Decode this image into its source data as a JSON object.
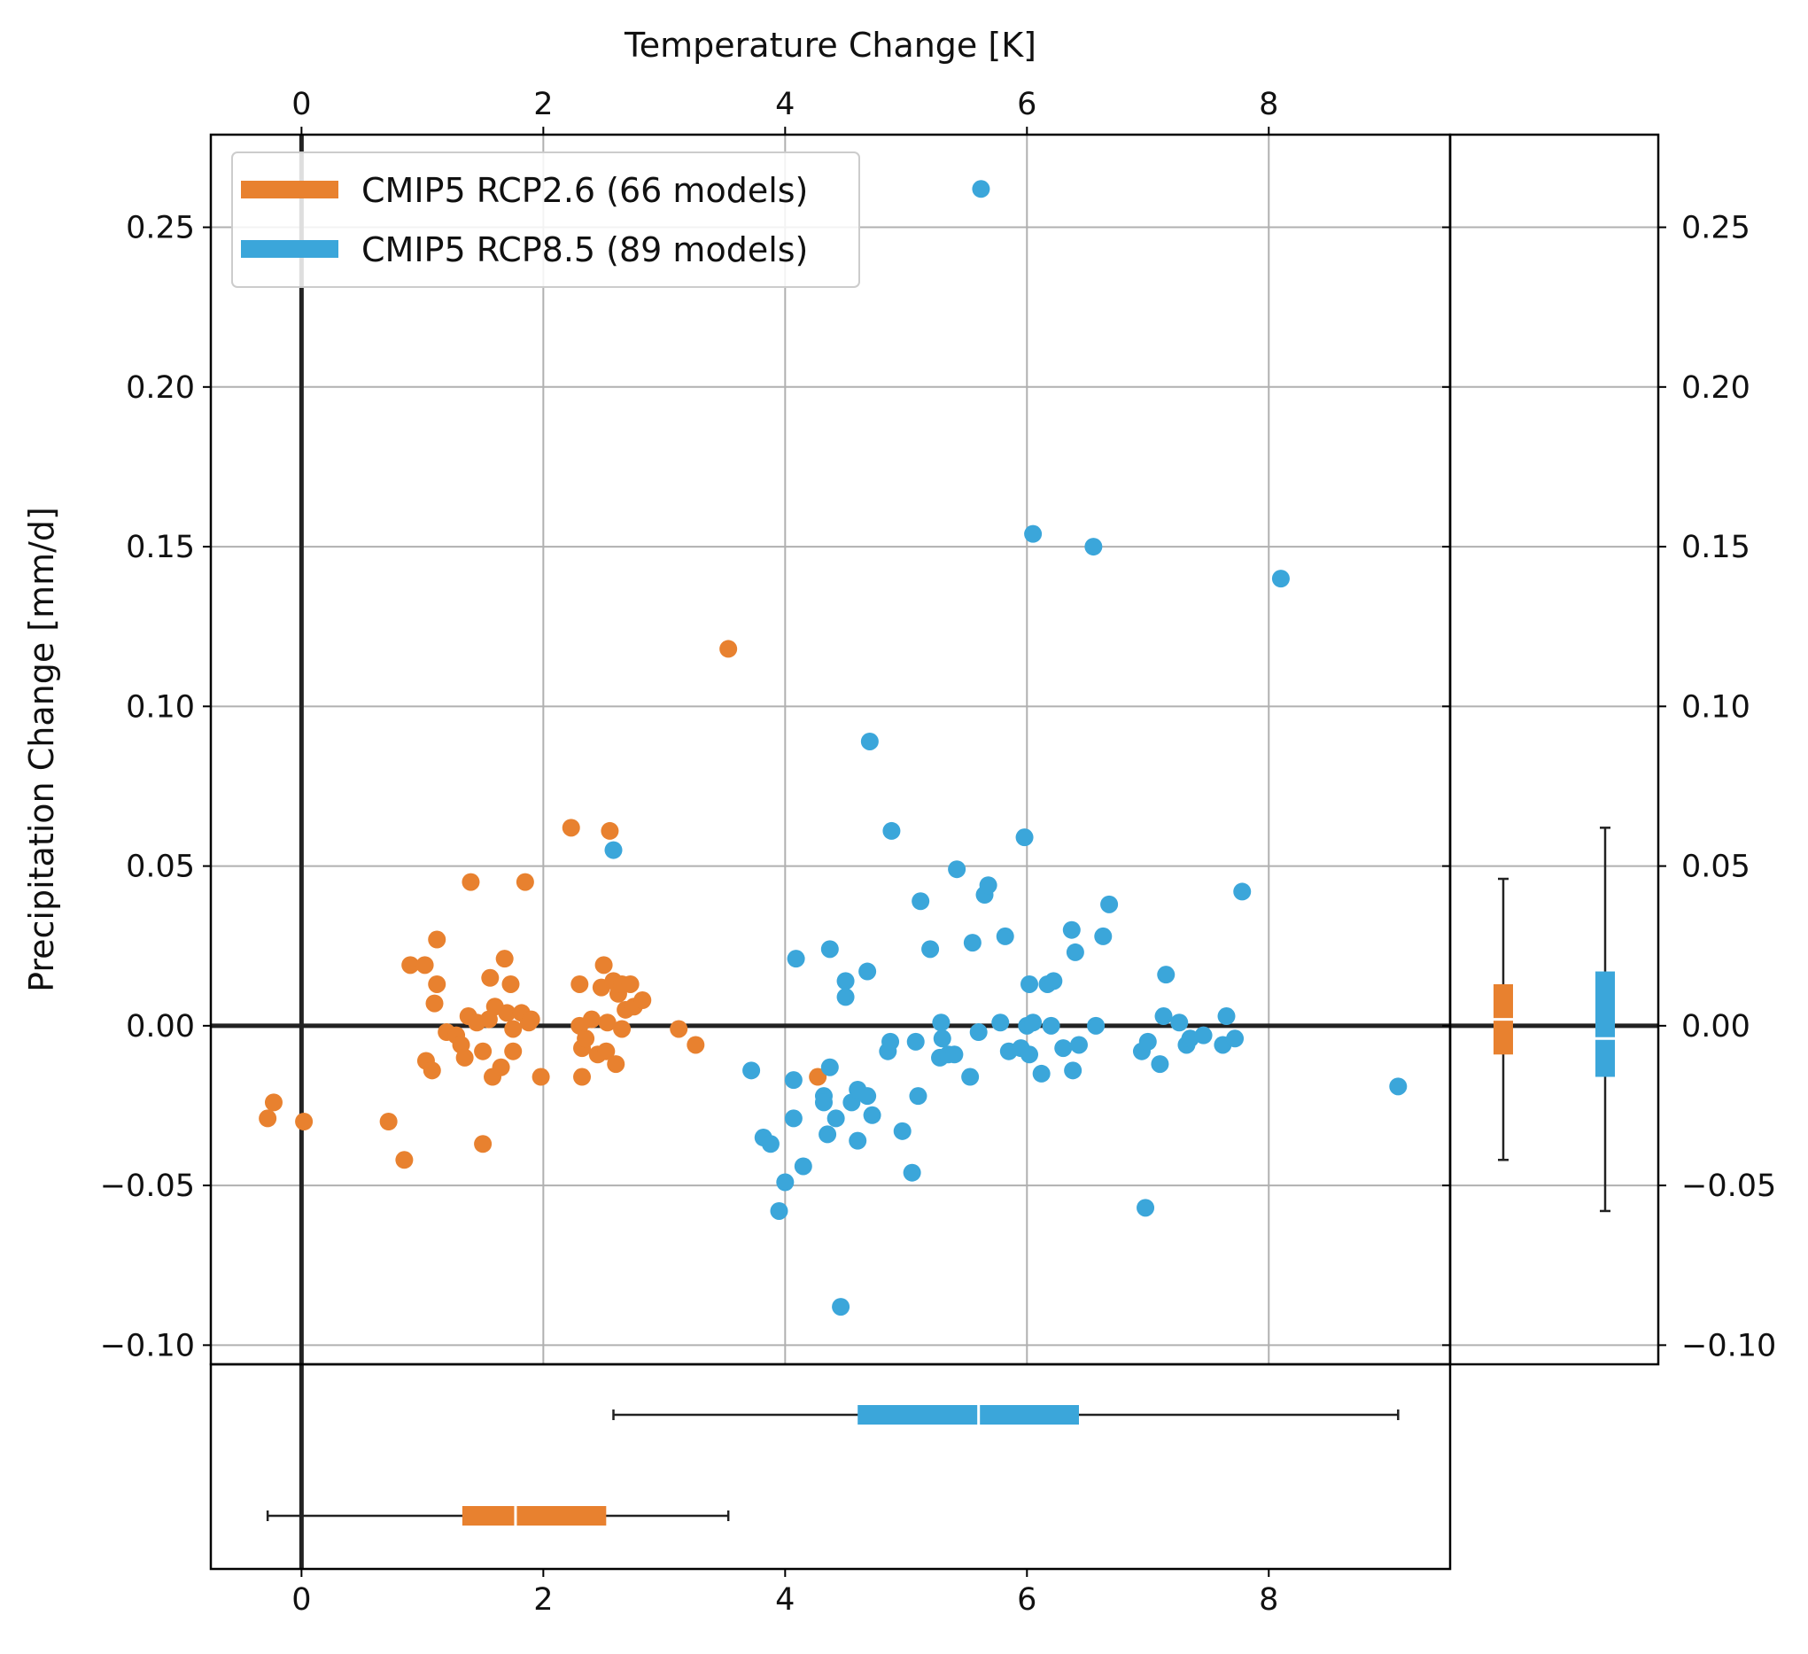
{
  "chart_data": {
    "type": "scatter",
    "xlabel": "Temperature Change [K]",
    "ylabel": "Precipitation Change [mm/d]",
    "xlim": [
      -0.75,
      9.5
    ],
    "ylim": [
      -0.106,
      0.279
    ],
    "x_ticks": [
      0,
      2,
      4,
      6,
      8
    ],
    "x_tick_labels": [
      "0",
      "2",
      "4",
      "6",
      "8"
    ],
    "y_ticks": [
      -0.1,
      -0.05,
      0.0,
      0.05,
      0.1,
      0.15,
      0.2,
      0.25
    ],
    "y_tick_labels": [
      "−0.10",
      "−0.05",
      "0.00",
      "0.05",
      "0.10",
      "0.15",
      "0.20",
      "0.25"
    ],
    "grid": true,
    "legend_position": "top-left",
    "series": [
      {
        "name": "CMIP5 RCP2.6 (66 models)",
        "color": "#e8812f",
        "points": [
          [
            -0.28,
            -0.029
          ],
          [
            -0.23,
            -0.024
          ],
          [
            0.02,
            -0.03
          ],
          [
            0.72,
            -0.03
          ],
          [
            0.85,
            -0.042
          ],
          [
            0.9,
            0.019
          ],
          [
            1.02,
            0.019
          ],
          [
            1.03,
            -0.011
          ],
          [
            1.08,
            -0.014
          ],
          [
            1.1,
            0.007
          ],
          [
            1.12,
            0.027
          ],
          [
            1.12,
            0.013
          ],
          [
            1.2,
            -0.002
          ],
          [
            1.28,
            -0.003
          ],
          [
            1.32,
            -0.006
          ],
          [
            1.35,
            -0.01
          ],
          [
            1.38,
            0.003
          ],
          [
            1.4,
            0.045
          ],
          [
            1.45,
            0.001
          ],
          [
            1.5,
            -0.008
          ],
          [
            1.5,
            -0.037
          ],
          [
            1.55,
            0.002
          ],
          [
            1.56,
            0.015
          ],
          [
            1.58,
            -0.016
          ],
          [
            1.6,
            0.006
          ],
          [
            1.65,
            -0.013
          ],
          [
            1.68,
            0.021
          ],
          [
            1.7,
            0.004
          ],
          [
            1.73,
            0.013
          ],
          [
            1.75,
            -0.008
          ],
          [
            1.75,
            -0.001
          ],
          [
            1.82,
            0.004
          ],
          [
            1.85,
            0.045
          ],
          [
            1.88,
            0.001
          ],
          [
            1.9,
            0.002
          ],
          [
            1.98,
            -0.016
          ],
          [
            2.23,
            0.062
          ],
          [
            2.3,
            0.013
          ],
          [
            2.3,
            0.0
          ],
          [
            2.32,
            -0.007
          ],
          [
            2.32,
            -0.016
          ],
          [
            2.35,
            -0.004
          ],
          [
            2.4,
            0.002
          ],
          [
            2.45,
            -0.009
          ],
          [
            2.48,
            0.012
          ],
          [
            2.5,
            0.019
          ],
          [
            2.52,
            -0.008
          ],
          [
            2.53,
            0.001
          ],
          [
            2.55,
            0.061
          ],
          [
            2.58,
            0.014
          ],
          [
            2.6,
            -0.012
          ],
          [
            2.62,
            0.01
          ],
          [
            2.65,
            0.013
          ],
          [
            2.65,
            -0.001
          ],
          [
            2.68,
            0.005
          ],
          [
            2.72,
            0.013
          ],
          [
            2.75,
            0.006
          ],
          [
            2.82,
            0.008
          ],
          [
            3.12,
            -0.001
          ],
          [
            3.26,
            -0.006
          ],
          [
            3.53,
            0.118
          ],
          [
            4.27,
            -0.016
          ]
        ]
      },
      {
        "name": "CMIP5 RCP8.5 (89 models)",
        "color": "#3ba6da",
        "points": [
          [
            2.58,
            0.055
          ],
          [
            3.72,
            -0.014
          ],
          [
            3.82,
            -0.035
          ],
          [
            3.88,
            -0.037
          ],
          [
            3.95,
            -0.058
          ],
          [
            4.0,
            -0.049
          ],
          [
            4.07,
            -0.029
          ],
          [
            4.07,
            -0.017
          ],
          [
            4.09,
            0.021
          ],
          [
            4.15,
            -0.044
          ],
          [
            4.32,
            -0.022
          ],
          [
            4.32,
            -0.024
          ],
          [
            4.35,
            -0.034
          ],
          [
            4.37,
            -0.013
          ],
          [
            4.37,
            0.024
          ],
          [
            4.42,
            -0.029
          ],
          [
            4.46,
            -0.088
          ],
          [
            4.5,
            0.014
          ],
          [
            4.5,
            0.009
          ],
          [
            4.55,
            -0.024
          ],
          [
            4.6,
            -0.02
          ],
          [
            4.6,
            -0.036
          ],
          [
            4.68,
            0.017
          ],
          [
            4.68,
            -0.022
          ],
          [
            4.7,
            0.089
          ],
          [
            4.72,
            -0.028
          ],
          [
            4.85,
            -0.008
          ],
          [
            4.87,
            -0.005
          ],
          [
            4.88,
            0.061
          ],
          [
            4.97,
            -0.033
          ],
          [
            5.05,
            -0.046
          ],
          [
            5.08,
            -0.005
          ],
          [
            5.1,
            -0.022
          ],
          [
            5.12,
            0.039
          ],
          [
            5.2,
            0.024
          ],
          [
            5.28,
            -0.01
          ],
          [
            5.29,
            0.001
          ],
          [
            5.3,
            -0.004
          ],
          [
            5.35,
            -0.009
          ],
          [
            5.4,
            -0.009
          ],
          [
            5.42,
            0.049
          ],
          [
            5.53,
            -0.016
          ],
          [
            5.55,
            0.026
          ],
          [
            5.6,
            -0.002
          ],
          [
            5.62,
            0.262
          ],
          [
            5.65,
            0.041
          ],
          [
            5.68,
            0.044
          ],
          [
            5.78,
            0.001
          ],
          [
            5.82,
            0.028
          ],
          [
            5.85,
            -0.008
          ],
          [
            5.95,
            -0.007
          ],
          [
            5.98,
            0.059
          ],
          [
            6.0,
            0.0
          ],
          [
            6.02,
            -0.009
          ],
          [
            6.02,
            0.013
          ],
          [
            6.05,
            0.001
          ],
          [
            6.05,
            0.154
          ],
          [
            6.12,
            -0.015
          ],
          [
            6.17,
            0.013
          ],
          [
            6.2,
            0.0
          ],
          [
            6.22,
            0.014
          ],
          [
            6.3,
            -0.007
          ],
          [
            6.37,
            0.03
          ],
          [
            6.38,
            -0.014
          ],
          [
            6.4,
            0.023
          ],
          [
            6.43,
            -0.006
          ],
          [
            6.55,
            0.15
          ],
          [
            6.57,
            0.0
          ],
          [
            6.63,
            0.028
          ],
          [
            6.68,
            0.038
          ],
          [
            6.95,
            -0.008
          ],
          [
            6.98,
            -0.057
          ],
          [
            7.0,
            -0.005
          ],
          [
            7.1,
            -0.012
          ],
          [
            7.13,
            0.003
          ],
          [
            7.15,
            0.016
          ],
          [
            7.26,
            0.001
          ],
          [
            7.32,
            -0.006
          ],
          [
            7.35,
            -0.004
          ],
          [
            7.46,
            -0.003
          ],
          [
            7.62,
            -0.006
          ],
          [
            7.65,
            0.003
          ],
          [
            7.72,
            -0.004
          ],
          [
            7.78,
            0.042
          ],
          [
            8.1,
            0.14
          ],
          [
            9.07,
            -0.019
          ]
        ]
      }
    ],
    "marginal_boxplots": [
      {
        "series": "CMIP5 RCP2.6 (66 models)",
        "temperature": {
          "min": -0.28,
          "q1": 1.33,
          "median": 1.77,
          "q3": 2.52,
          "max": 3.53
        },
        "precipitation": {
          "min": -0.042,
          "q1": -0.009,
          "median": 0.002,
          "q3": 0.013,
          "max": 0.046
        }
      },
      {
        "series": "CMIP5 RCP8.5 (89 models)",
        "temperature": {
          "min": 2.58,
          "q1": 4.6,
          "median": 5.6,
          "q3": 6.43,
          "max": 9.07
        },
        "precipitation": {
          "min": -0.058,
          "q1": -0.016,
          "median": -0.004,
          "q3": 0.017,
          "max": 0.062
        }
      }
    ]
  }
}
